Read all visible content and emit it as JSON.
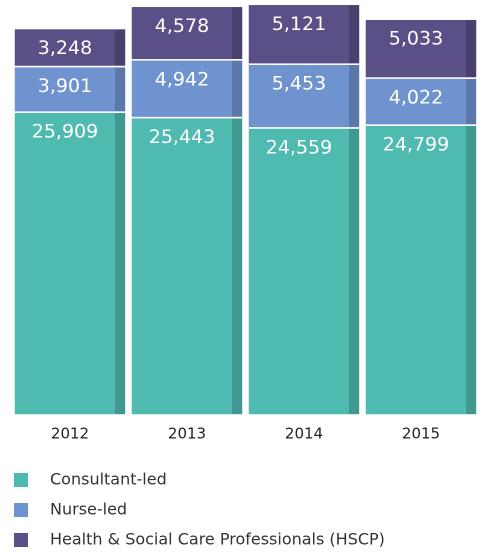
{
  "chart_data": {
    "type": "stacked_bar",
    "categories": [
      "2012",
      "2013",
      "2014",
      "2015"
    ],
    "series": [
      {
        "name": "Consultant-led",
        "color": "#4fbab0",
        "values": [
          25909,
          25443,
          24559,
          24799
        ],
        "value_labels": [
          "25,909",
          "25,443",
          "24,559",
          "24,799"
        ]
      },
      {
        "name": "Nurse-led",
        "color": "#6f93cf",
        "values": [
          3901,
          4942,
          5453,
          4022
        ],
        "value_labels": [
          "3,901",
          "4,942",
          "5,453",
          "4,022"
        ]
      },
      {
        "name": "Health & Social Care Professionals (HSCP)",
        "color": "#5a4f86",
        "values": [
          3248,
          4578,
          5121,
          5033
        ],
        "value_labels": [
          "3,248",
          "4,578",
          "5,121",
          "5,033"
        ]
      }
    ],
    "ylim": [
      0,
      35500
    ]
  }
}
